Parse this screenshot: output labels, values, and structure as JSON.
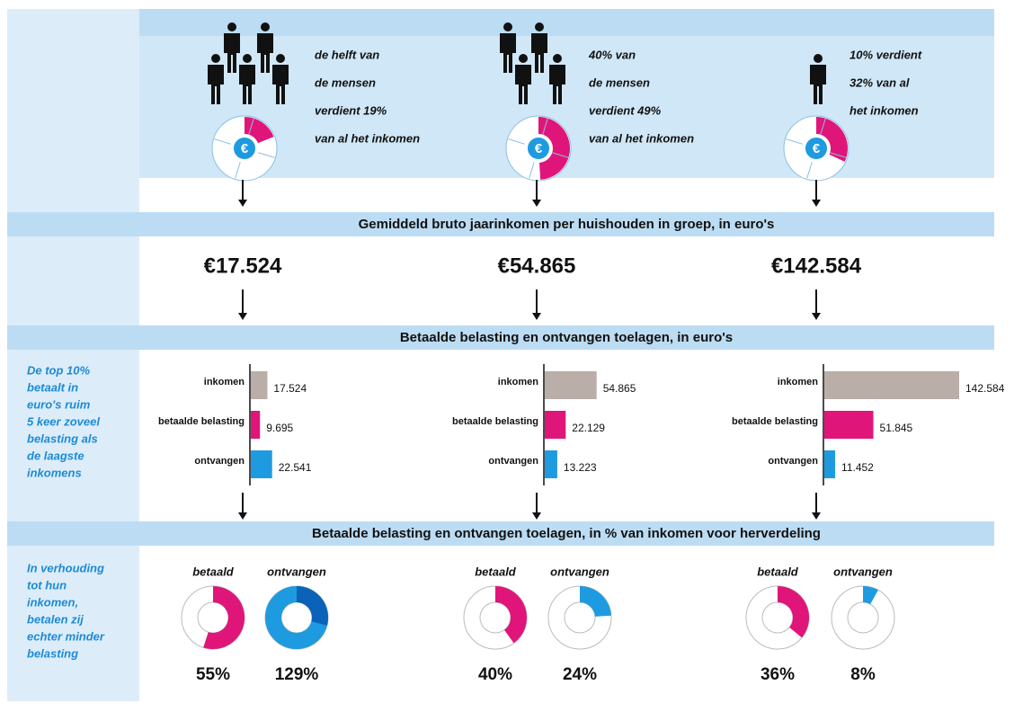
{
  "headings": [
    "Gemiddeld bruto jaarinkomen per huishouden in groep, in euro's",
    "Betaalde belasting en ontvangen toelagen, in euro's",
    "Betaalde belasting en ontvangen toelagen, in % van inkomen voor herverdeling"
  ],
  "side_notes": [
    [
      "De top 10%",
      "betaalt in",
      "euro's ruim",
      "5 keer zoveel",
      "belasting als",
      "de laagste",
      "inkomens"
    ],
    [
      "In verhouding",
      "tot hun",
      "inkomen,",
      "betalen zij",
      "echter minder",
      "belasting"
    ]
  ],
  "icon_symbol": "€",
  "bar_labels": [
    "inkomen",
    "betaalde belasting",
    "ontvangen"
  ],
  "donut_labels": [
    "betaald",
    "ontvangen"
  ],
  "groups": [
    {
      "people": 5,
      "description": [
        "de helft van",
        "de mensen",
        "verdient 19%",
        "van al het inkomen"
      ],
      "share": 19,
      "income": "€17.524",
      "bars": {
        "values": [
          17524,
          9695,
          22541
        ],
        "value_labels": [
          "17.524",
          "9.695",
          "22.541"
        ]
      },
      "percentages": {
        "values": [
          55,
          129
        ],
        "value_labels": [
          "55%",
          "129%"
        ]
      }
    },
    {
      "people": 4,
      "description": [
        "40% van",
        "de mensen",
        "verdient 49%",
        "van al het inkomen"
      ],
      "share": 49,
      "income": "€54.865",
      "bars": {
        "values": [
          54865,
          22129,
          13223
        ],
        "value_labels": [
          "54.865",
          "22.129",
          "13.223"
        ]
      },
      "percentages": {
        "values": [
          40,
          24
        ],
        "value_labels": [
          "40%",
          "24%"
        ]
      }
    },
    {
      "people": 1,
      "description": [
        "10% verdient",
        "32% van al",
        "het inkomen"
      ],
      "share": 32,
      "income": "€142.584",
      "bars": {
        "values": [
          142584,
          51845,
          11452
        ],
        "value_labels": [
          "142.584",
          "51.845",
          "11.452"
        ]
      },
      "percentages": {
        "values": [
          36,
          8
        ],
        "value_labels": [
          "36%",
          "8%"
        ]
      }
    }
  ]
}
